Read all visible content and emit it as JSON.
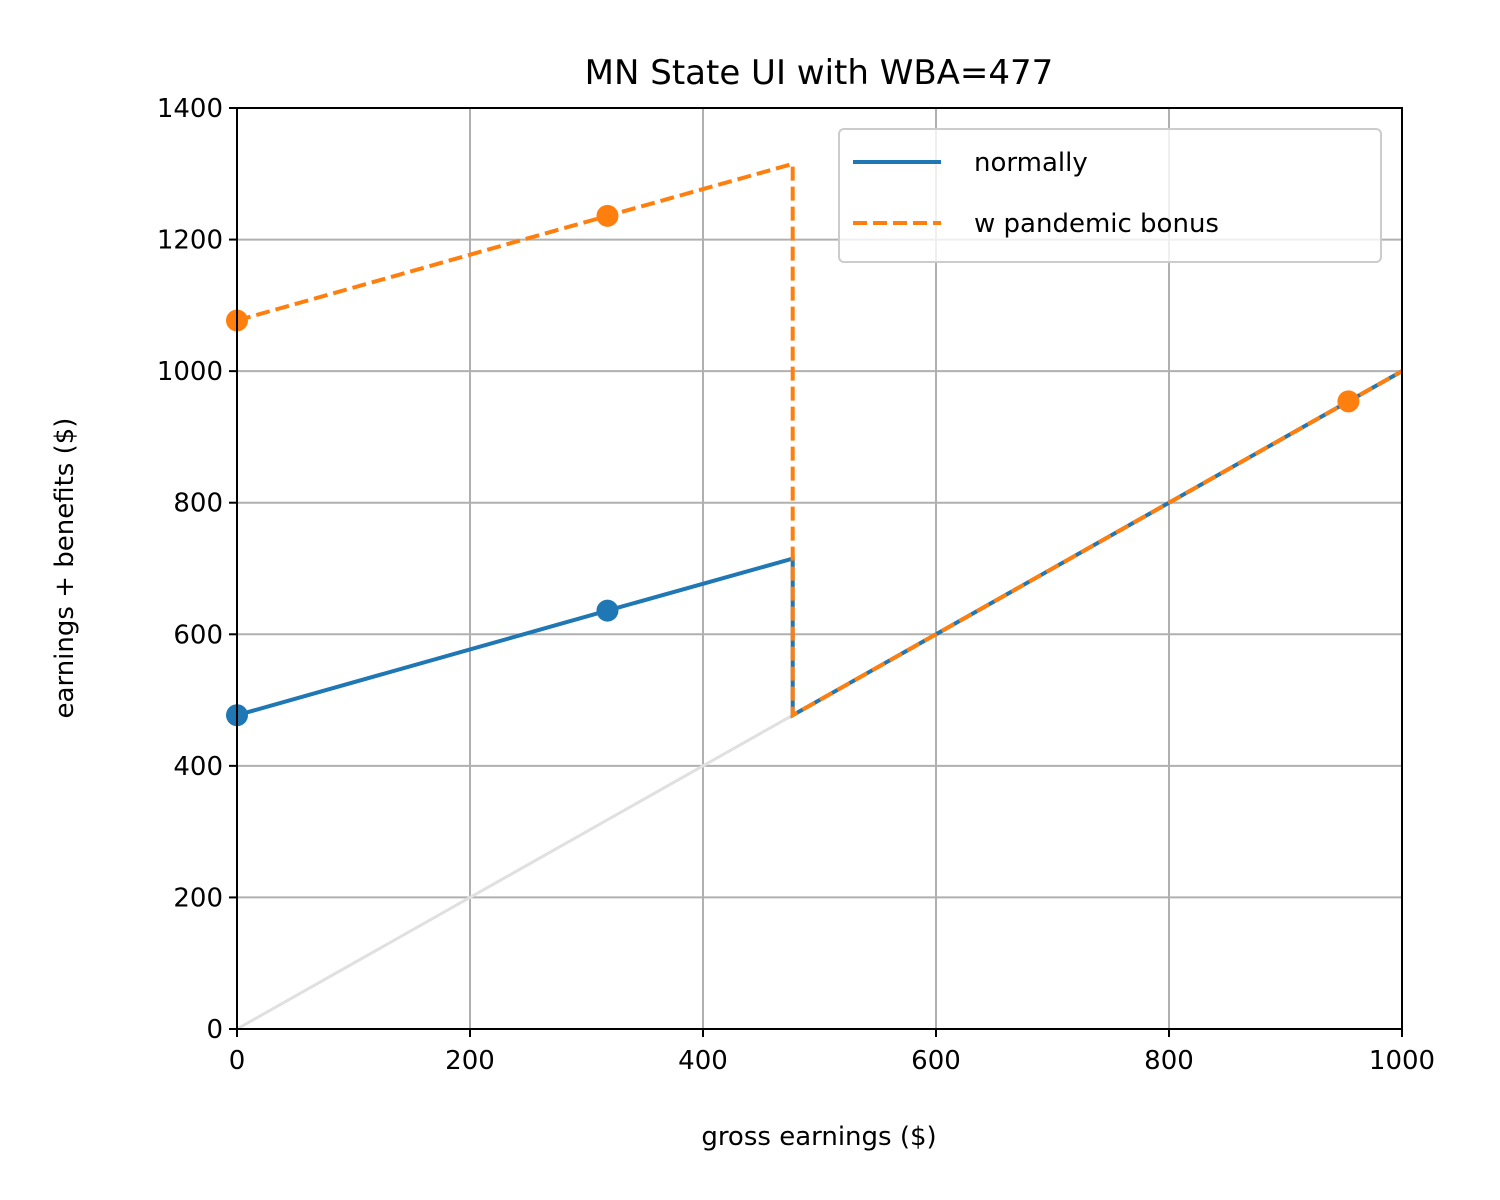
{
  "chart_data": {
    "type": "line",
    "title": "MN State UI with WBA=477",
    "xlabel": "gross earnings ($)",
    "ylabel": "earnings + benefits ($)",
    "xlim": [
      0,
      1000
    ],
    "ylim": [
      0,
      1400
    ],
    "xticks": [
      0,
      200,
      400,
      600,
      800,
      1000
    ],
    "yticks": [
      0,
      200,
      400,
      600,
      800,
      1000,
      1200,
      1400
    ],
    "x_tick_labels": [
      "0",
      "200",
      "400",
      "600",
      "800",
      "1000"
    ],
    "y_tick_labels": [
      "0",
      "200",
      "400",
      "600",
      "800",
      "1000",
      "1200",
      "1400"
    ],
    "grid": true,
    "legend_position": "top-right",
    "reference_line": {
      "color": "#e0e0e0",
      "x": [
        0,
        477
      ],
      "y": [
        0,
        477
      ]
    },
    "series": [
      {
        "name": "normally",
        "color": "#1f77b4",
        "style": "solid",
        "x": [
          0,
          318,
          477,
          477,
          1000
        ],
        "y": [
          477,
          636,
          715,
          477,
          1000
        ],
        "markers": [
          {
            "x": 0,
            "y": 477
          },
          {
            "x": 318,
            "y": 636
          }
        ]
      },
      {
        "name": "w pandemic bonus",
        "color": "#ff7f0e",
        "style": "dashed",
        "x": [
          0,
          318,
          477,
          477,
          1000
        ],
        "y": [
          1077,
          1236,
          1315,
          477,
          1000
        ],
        "markers": [
          {
            "x": 0,
            "y": 1077
          },
          {
            "x": 318,
            "y": 1236
          },
          {
            "x": 954,
            "y": 954
          }
        ]
      }
    ]
  }
}
